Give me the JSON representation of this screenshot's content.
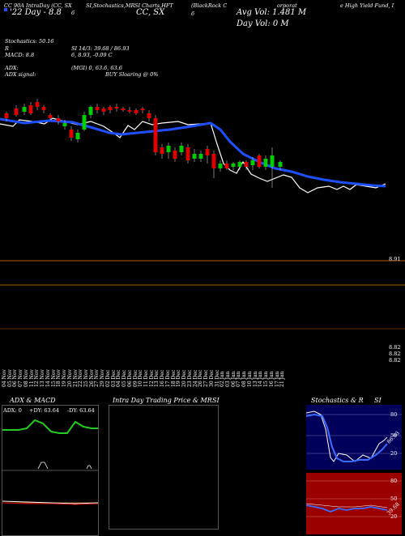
{
  "header": {
    "line1": [
      "CC 90A IntraDay ADX,MACD,R",
      "6",
      "SI,Stochastics,MR",
      "SI Charts,HFT",
      "(BlackRock C",
      "Avg Vol: 1.481 M",
      "orporat",
      "e High Yield Fund, I"
    ],
    "ticker_label": "CC 90A IntraDay (CC, SX",
    "ticker_sub": "'22 Day - 8.8",
    "center_code": "6",
    "ticker_right": "CC, SX",
    "day_vol": "Day Vol: 0  M",
    "stochastics": "Stochastics: 50.16",
    "rsi": "R",
    "rsi_text": "SI 14/3: 39.68 / 86.93",
    "macd": "MACD: 8.8",
    "macd_vals": "6,  8.93,  -0.09 C",
    "adx": "ADX:",
    "adx_vals": "(MGI) 0,  63.6,  63.6",
    "adx_signal": "ADX  signal:",
    "adx_signal_text": "BUY Sloaring @ 0%"
  },
  "price_axis": {
    "top_label": "8.91",
    "mid_labels": [
      "8.82",
      "8.82",
      "8.82"
    ]
  },
  "dates": [
    "04 Nov",
    "05 Nov",
    "06 Nov",
    "07 Nov",
    "08 Nov",
    "11 Nov",
    "12 Nov",
    "13 Nov",
    "14 Nov",
    "15 Nov",
    "18 Nov",
    "19 Nov",
    "20 Nov",
    "21 Nov",
    "22 Nov",
    "25 Nov",
    "26 Nov",
    "27 Nov",
    "29 Nov",
    "02 Dec",
    "03 Dec",
    "04 Dec",
    "05 Dec",
    "06 Dec",
    "09 Dec",
    "10 Dec",
    "11 Dec",
    "12 Dec",
    "13 Dec",
    "16 Dec",
    "17 Dec",
    "18 Dec",
    "19 Dec",
    "20 Dec",
    "23 Dec",
    "24 Dec",
    "26 Dec",
    "27 Dec",
    "30 Dec",
    "31 Dec",
    "02 Jan",
    "03 Jan",
    "06 Jan",
    "07 Jan",
    "08 Jan",
    "10 Jan",
    "13 Jan",
    "14 Jan",
    "15 Jan",
    "16 Jan",
    "17 Jan",
    "21 Jan"
  ],
  "panels": {
    "adx": {
      "title": "ADX  & MACD",
      "readout": [
        "ADX: 0",
        "+DY: 63.64",
        "-DY: 63.64"
      ]
    },
    "intraday": {
      "title": "Intra  Day Trading Price  & MR",
      "title_right": "SI"
    },
    "stoch": {
      "title": "Stochastics & R",
      "title_right": "SI",
      "levels_top": [
        "80",
        "50",
        "20"
      ],
      "levels_bottom": [
        "80",
        "50",
        "20"
      ],
      "value_top": "86.93",
      "value_bottom": "39.68"
    }
  },
  "colors": {
    "background": "#000000",
    "ma_line": "#1e50ff",
    "price_line": "#ffffff",
    "up_candle": "#00cc00",
    "down_candle": "#dd0000",
    "orange_line": "#b05a00",
    "rsi_bg": "#9a0000",
    "stoch_bg": "#00005a",
    "adx_green": "#22cc22"
  }
}
